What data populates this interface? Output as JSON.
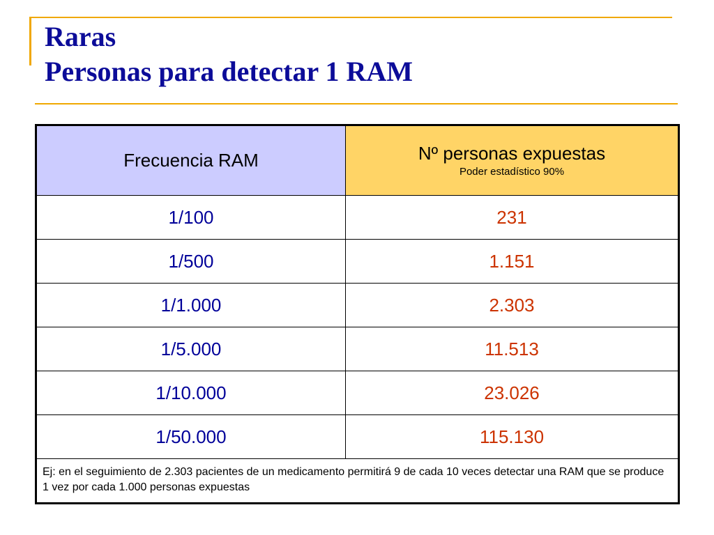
{
  "title": {
    "line1": "Raras",
    "line2": "Personas para detectar 1 RAM"
  },
  "table": {
    "headers": {
      "frequency": "Frecuencia RAM",
      "persons": "Nº personas expuestas",
      "persons_sub": "Poder estadístico 90%"
    },
    "rows": [
      {
        "frequency": "1/100",
        "persons": "231"
      },
      {
        "frequency": "1/500",
        "persons": "1.151"
      },
      {
        "frequency": "1/1.000",
        "persons": "2.303"
      },
      {
        "frequency": "1/5.000",
        "persons": "11.513"
      },
      {
        "frequency": "1/10.000",
        "persons": "23.026"
      },
      {
        "frequency": "1/50.000",
        "persons": "115.130"
      }
    ],
    "footnote": "Ej: en el seguimiento de 2.303 pacientes de un medicamento permitirá 9 de cada 10 veces detectar una RAM que se produce 1 vez por cada 1.000 personas expuestas"
  },
  "colors": {
    "title": "#0c0c99",
    "accent": "#f0a800",
    "header_frequency_bg": "#ccccff",
    "header_persons_bg": "#ffd466",
    "frequency_text": "#000099",
    "persons_text": "#cc3300"
  }
}
